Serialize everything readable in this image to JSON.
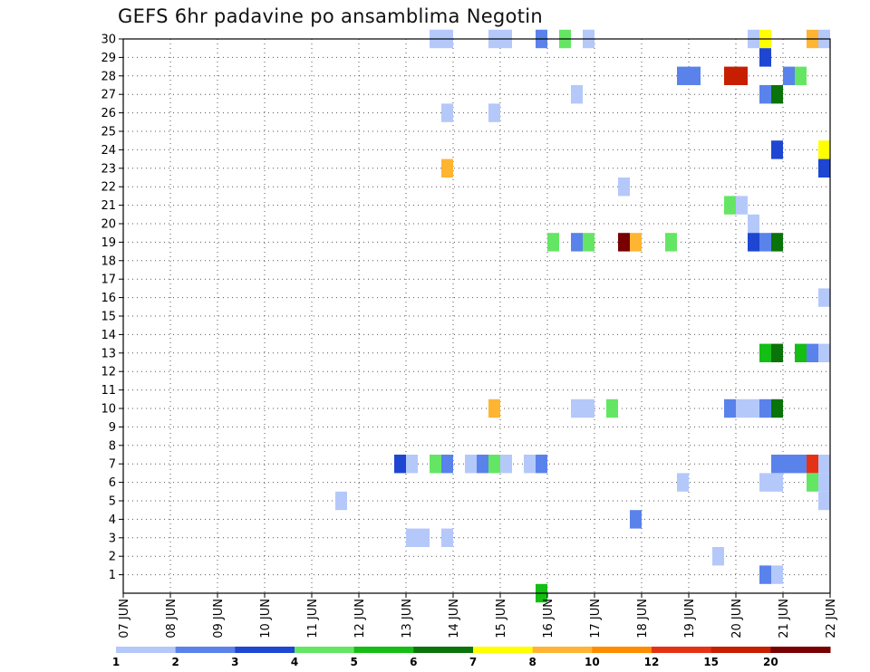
{
  "chart_data": {
    "type": "heatmap",
    "title": "GEFS 6hr padavine po ansamblima Negotin",
    "x_tick_labels": [
      "07 JUN",
      "08 JUN",
      "09 JUN",
      "10 JUN",
      "11 JUN",
      "12 JUN",
      "13 JUN",
      "14 JUN",
      "15 JUN",
      "16 JUN",
      "17 JUN",
      "18 JUN",
      "19 JUN",
      "20 JUN",
      "21 JUN",
      "22 JUN"
    ],
    "y_tick_labels": [
      "1",
      "2",
      "3",
      "4",
      "5",
      "6",
      "7",
      "8",
      "9",
      "10",
      "11",
      "12",
      "13",
      "14",
      "15",
      "16",
      "17",
      "18",
      "19",
      "20",
      "21",
      "22",
      "23",
      "24",
      "25",
      "26",
      "27",
      "28",
      "29",
      "30"
    ],
    "ylim": [
      0,
      30
    ],
    "grid": true,
    "legend_labels": [
      "1",
      "2",
      "3",
      "4",
      "5",
      "6",
      "7",
      "8",
      "10",
      "12",
      "15",
      "20"
    ],
    "levels": [
      {
        "color": "#b4c8fa"
      },
      {
        "color": "#5a82eb"
      },
      {
        "color": "#1e46d2"
      },
      {
        "color": "#64e664"
      },
      {
        "color": "#14be14"
      },
      {
        "color": "#0a730a"
      },
      {
        "color": "#ffff00"
      },
      {
        "color": "#ffb432"
      },
      {
        "color": "#ff8c00"
      },
      {
        "color": "#e63214"
      },
      {
        "color": "#c81e00"
      },
      {
        "color": "#780000"
      }
    ],
    "cells": [
      {
        "t": "13 JUN 12Z",
        "m": 30,
        "l": 0
      },
      {
        "t": "13 JUN 18Z",
        "m": 30,
        "l": 0
      },
      {
        "t": "14 JUN 18Z",
        "m": 30,
        "l": 0
      },
      {
        "t": "15 JUN 00Z",
        "m": 30,
        "l": 0
      },
      {
        "t": "15 JUN 18Z",
        "m": 30,
        "l": 1
      },
      {
        "t": "16 JUN 06Z",
        "m": 30,
        "l": 3
      },
      {
        "t": "16 JUN 18Z",
        "m": 30,
        "l": 0
      },
      {
        "t": "20 JUN 06Z",
        "m": 30,
        "l": 0
      },
      {
        "t": "20 JUN 12Z",
        "m": 30,
        "l": 6
      },
      {
        "t": "21 JUN 12Z",
        "m": 30,
        "l": 7
      },
      {
        "t": "21 JUN 18Z",
        "m": 30,
        "l": 0
      },
      {
        "t": "20 JUN 12Z",
        "m": 29,
        "l": 2
      },
      {
        "t": "18 JUN 18Z",
        "m": 28,
        "l": 1
      },
      {
        "t": "19 JUN 00Z",
        "m": 28,
        "l": 1
      },
      {
        "t": "19 JUN 18Z",
        "m": 28,
        "l": 10
      },
      {
        "t": "20 JUN 00Z",
        "m": 28,
        "l": 10
      },
      {
        "t": "21 JUN 00Z",
        "m": 28,
        "l": 1
      },
      {
        "t": "21 JUN 06Z",
        "m": 28,
        "l": 3
      },
      {
        "t": "16 JUN 12Z",
        "m": 27,
        "l": 0
      },
      {
        "t": "20 JUN 12Z",
        "m": 27,
        "l": 1
      },
      {
        "t": "20 JUN 18Z",
        "m": 27,
        "l": 5
      },
      {
        "t": "13 JUN 18Z",
        "m": 26,
        "l": 0
      },
      {
        "t": "14 JUN 18Z",
        "m": 26,
        "l": 0
      },
      {
        "t": "20 JUN 18Z",
        "m": 24,
        "l": 2
      },
      {
        "t": "21 JUN 18Z",
        "m": 24,
        "l": 6
      },
      {
        "t": "13 JUN 18Z",
        "m": 23,
        "l": 7
      },
      {
        "t": "21 JUN 18Z",
        "m": 23,
        "l": 2
      },
      {
        "t": "17 JUN 12Z",
        "m": 22,
        "l": 0
      },
      {
        "t": "19 JUN 18Z",
        "m": 21,
        "l": 3
      },
      {
        "t": "20 JUN 00Z",
        "m": 21,
        "l": 0
      },
      {
        "t": "20 JUN 06Z",
        "m": 20,
        "l": 0
      },
      {
        "t": "16 JUN 00Z",
        "m": 19,
        "l": 3
      },
      {
        "t": "16 JUN 12Z",
        "m": 19,
        "l": 1
      },
      {
        "t": "16 JUN 18Z",
        "m": 19,
        "l": 3
      },
      {
        "t": "17 JUN 12Z",
        "m": 19,
        "l": 11
      },
      {
        "t": "17 JUN 18Z",
        "m": 19,
        "l": 7
      },
      {
        "t": "18 JUN 12Z",
        "m": 19,
        "l": 3
      },
      {
        "t": "20 JUN 06Z",
        "m": 19,
        "l": 2
      },
      {
        "t": "20 JUN 12Z",
        "m": 19,
        "l": 1
      },
      {
        "t": "20 JUN 18Z",
        "m": 19,
        "l": 5
      },
      {
        "t": "21 JUN 18Z",
        "m": 16,
        "l": 0
      },
      {
        "t": "20 JUN 12Z",
        "m": 13,
        "l": 4
      },
      {
        "t": "20 JUN 18Z",
        "m": 13,
        "l": 5
      },
      {
        "t": "21 JUN 06Z",
        "m": 13,
        "l": 4
      },
      {
        "t": "21 JUN 12Z",
        "m": 13,
        "l": 1
      },
      {
        "t": "21 JUN 18Z",
        "m": 13,
        "l": 0
      },
      {
        "t": "14 JUN 18Z",
        "m": 10,
        "l": 7
      },
      {
        "t": "16 JUN 12Z",
        "m": 10,
        "l": 0
      },
      {
        "t": "16 JUN 18Z",
        "m": 10,
        "l": 0
      },
      {
        "t": "17 JUN 06Z",
        "m": 10,
        "l": 3
      },
      {
        "t": "19 JUN 18Z",
        "m": 10,
        "l": 1
      },
      {
        "t": "20 JUN 00Z",
        "m": 10,
        "l": 0
      },
      {
        "t": "20 JUN 06Z",
        "m": 10,
        "l": 0
      },
      {
        "t": "20 JUN 12Z",
        "m": 10,
        "l": 1
      },
      {
        "t": "20 JUN 18Z",
        "m": 10,
        "l": 5
      },
      {
        "t": "12 JUN 18Z",
        "m": 7,
        "l": 2
      },
      {
        "t": "13 JUN 00Z",
        "m": 7,
        "l": 0
      },
      {
        "t": "13 JUN 12Z",
        "m": 7,
        "l": 3
      },
      {
        "t": "13 JUN 18Z",
        "m": 7,
        "l": 1
      },
      {
        "t": "14 JUN 06Z",
        "m": 7,
        "l": 0
      },
      {
        "t": "14 JUN 12Z",
        "m": 7,
        "l": 1
      },
      {
        "t": "14 JUN 18Z",
        "m": 7,
        "l": 3
      },
      {
        "t": "15 JUN 00Z",
        "m": 7,
        "l": 0
      },
      {
        "t": "15 JUN 12Z",
        "m": 7,
        "l": 0
      },
      {
        "t": "15 JUN 18Z",
        "m": 7,
        "l": 1
      },
      {
        "t": "20 JUN 18Z",
        "m": 7,
        "l": 1
      },
      {
        "t": "21 JUN 00Z",
        "m": 7,
        "l": 1
      },
      {
        "t": "21 JUN 06Z",
        "m": 7,
        "l": 1
      },
      {
        "t": "21 JUN 12Z",
        "m": 7,
        "l": 9
      },
      {
        "t": "21 JUN 18Z",
        "m": 7,
        "l": 0
      },
      {
        "t": "18 JUN 18Z",
        "m": 6,
        "l": 0
      },
      {
        "t": "20 JUN 12Z",
        "m": 6,
        "l": 0
      },
      {
        "t": "20 JUN 18Z",
        "m": 6,
        "l": 0
      },
      {
        "t": "21 JUN 12Z",
        "m": 6,
        "l": 3
      },
      {
        "t": "21 JUN 18Z",
        "m": 6,
        "l": 0
      },
      {
        "t": "11 JUN 12Z",
        "m": 5,
        "l": 0
      },
      {
        "t": "21 JUN 18Z",
        "m": 5,
        "l": 0
      },
      {
        "t": "17 JUN 18Z",
        "m": 4,
        "l": 1
      },
      {
        "t": "13 JUN 00Z",
        "m": 3,
        "l": 0
      },
      {
        "t": "13 JUN 06Z",
        "m": 3,
        "l": 0
      },
      {
        "t": "13 JUN 18Z",
        "m": 3,
        "l": 0
      },
      {
        "t": "19 JUN 12Z",
        "m": 2,
        "l": 0
      },
      {
        "t": "20 JUN 12Z",
        "m": 1,
        "l": 1
      },
      {
        "t": "20 JUN 18Z",
        "m": 1,
        "l": 0
      },
      {
        "t": "15 JUN 18Z",
        "m": 0,
        "l": 4
      }
    ]
  }
}
